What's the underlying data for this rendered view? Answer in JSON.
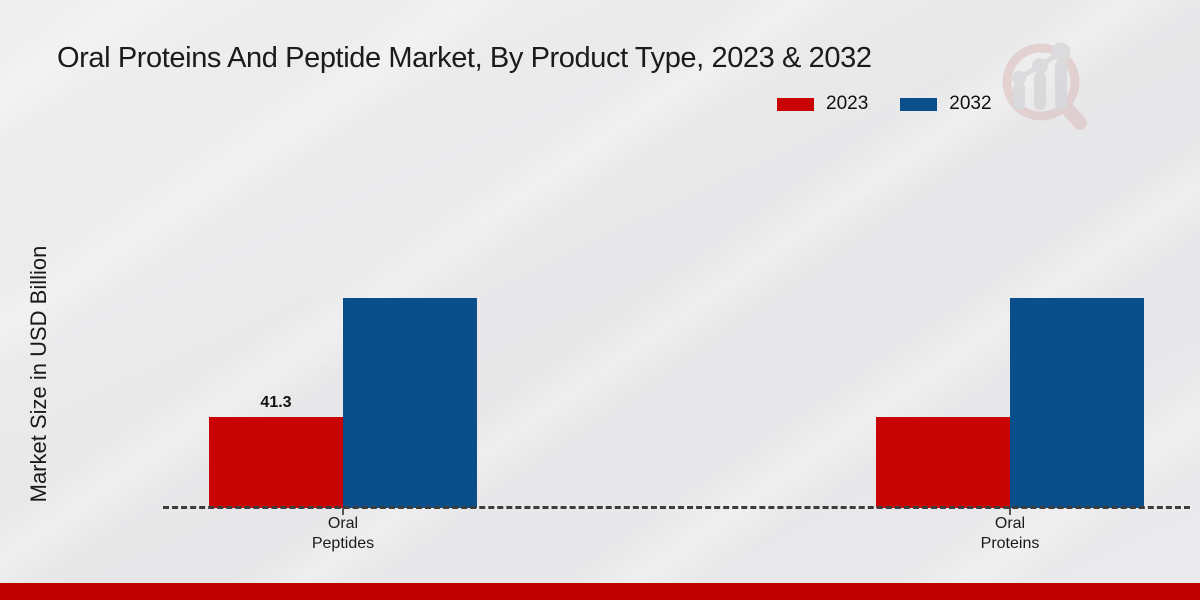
{
  "chart_data": {
    "type": "bar",
    "title": "Oral Proteins And Peptide Market, By Product Type, 2023 & 2032",
    "ylabel": "Market Size in USD Billion",
    "xlabel": "",
    "categories": [
      "Oral Peptides",
      "Oral Proteins"
    ],
    "series": [
      {
        "name": "2023",
        "color": "#c90404",
        "values": [
          41.3,
          41.3
        ],
        "labels": [
          "41.3",
          ""
        ]
      },
      {
        "name": "2032",
        "color": "#0a4e8c",
        "values": [
          95.5,
          95.5
        ],
        "labels": [
          "",
          ""
        ]
      }
    ],
    "ylim": [
      0,
      110
    ],
    "grid": false,
    "legend_position": "top-right",
    "baseline_style": "dashed"
  },
  "legend": {
    "items": [
      {
        "label": "2023",
        "color": "#c90404"
      },
      {
        "label": "2032",
        "color": "#0a4e8c"
      }
    ]
  },
  "watermark": {
    "name": "magnifier-bar-chart-logo",
    "ring_color": "#dcbcbc",
    "bars_color": "#cccccf"
  },
  "footer": {
    "bar_color": "#c00000"
  }
}
